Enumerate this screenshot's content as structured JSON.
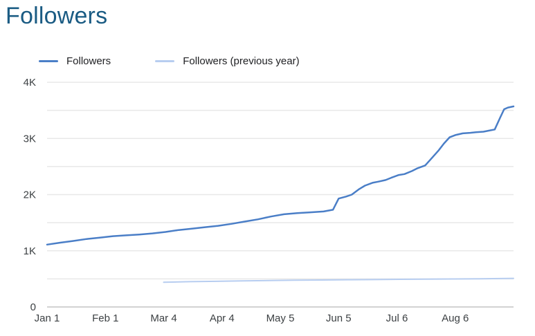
{
  "page": {
    "title": "Followers"
  },
  "legend": {
    "items": [
      {
        "label": "Followers",
        "color": "#4a7ec7"
      },
      {
        "label": "Followers (previous year)",
        "color": "#b7cdf0"
      }
    ]
  },
  "colors": {
    "title": "#1a5b83",
    "gridline": "#e8e8e8",
    "baseline": "#c4c4c4",
    "tick_label": "#3c4043"
  },
  "chart_data": {
    "type": "line",
    "title": "Followers",
    "xlabel": "",
    "ylabel": "",
    "legend_position": "top",
    "grid": "horizontal-only",
    "x_unit": "days-since-Jan-1",
    "x_range_days": [
      0,
      248
    ],
    "x_ticks": [
      {
        "day": 0,
        "label": "Jan 1"
      },
      {
        "day": 31,
        "label": "Feb 1"
      },
      {
        "day": 62,
        "label": "Mar 4"
      },
      {
        "day": 93,
        "label": "Apr 4"
      },
      {
        "day": 124,
        "label": "May 5"
      },
      {
        "day": 155,
        "label": "Jun 5"
      },
      {
        "day": 186,
        "label": "Jul 6"
      },
      {
        "day": 217,
        "label": "Aug 6"
      }
    ],
    "y_range": [
      0,
      4000
    ],
    "gridline_step": 500,
    "y_ticks": [
      {
        "value": 0,
        "label": "0"
      },
      {
        "value": 1000,
        "label": "1K"
      },
      {
        "value": 2000,
        "label": "2K"
      },
      {
        "value": 3000,
        "label": "3K"
      },
      {
        "value": 4000,
        "label": "4K"
      }
    ],
    "series": [
      {
        "name": "Followers",
        "color": "#4a7ec7",
        "stroke_width": 2.5,
        "points": [
          [
            0,
            1110
          ],
          [
            7,
            1145
          ],
          [
            14,
            1175
          ],
          [
            21,
            1210
          ],
          [
            28,
            1235
          ],
          [
            35,
            1260
          ],
          [
            42,
            1275
          ],
          [
            49,
            1290
          ],
          [
            56,
            1310
          ],
          [
            63,
            1335
          ],
          [
            70,
            1370
          ],
          [
            77,
            1395
          ],
          [
            84,
            1420
          ],
          [
            91,
            1445
          ],
          [
            98,
            1480
          ],
          [
            105,
            1520
          ],
          [
            112,
            1560
          ],
          [
            119,
            1610
          ],
          [
            126,
            1650
          ],
          [
            133,
            1670
          ],
          [
            140,
            1685
          ],
          [
            147,
            1700
          ],
          [
            152,
            1730
          ],
          [
            155,
            1930
          ],
          [
            159,
            1965
          ],
          [
            162,
            2000
          ],
          [
            166,
            2100
          ],
          [
            169,
            2160
          ],
          [
            173,
            2210
          ],
          [
            176,
            2230
          ],
          [
            180,
            2260
          ],
          [
            183,
            2300
          ],
          [
            187,
            2350
          ],
          [
            190,
            2365
          ],
          [
            194,
            2420
          ],
          [
            197,
            2470
          ],
          [
            201,
            2520
          ],
          [
            204,
            2630
          ],
          [
            208,
            2780
          ],
          [
            211,
            2910
          ],
          [
            214,
            3020
          ],
          [
            217,
            3060
          ],
          [
            221,
            3090
          ],
          [
            225,
            3100
          ],
          [
            228,
            3110
          ],
          [
            232,
            3120
          ],
          [
            235,
            3140
          ],
          [
            238,
            3160
          ],
          [
            241,
            3380
          ],
          [
            243,
            3520
          ],
          [
            245,
            3550
          ],
          [
            248,
            3570
          ]
        ]
      },
      {
        "name": "Followers (previous year)",
        "color": "#b7cdf0",
        "stroke_width": 2,
        "points": [
          [
            62,
            440
          ],
          [
            76,
            450
          ],
          [
            90,
            457
          ],
          [
            104,
            465
          ],
          [
            118,
            470
          ],
          [
            132,
            476
          ],
          [
            146,
            480
          ],
          [
            160,
            485
          ],
          [
            174,
            488
          ],
          [
            188,
            492
          ],
          [
            202,
            495
          ],
          [
            216,
            498
          ],
          [
            230,
            502
          ],
          [
            248,
            510
          ]
        ]
      }
    ]
  }
}
